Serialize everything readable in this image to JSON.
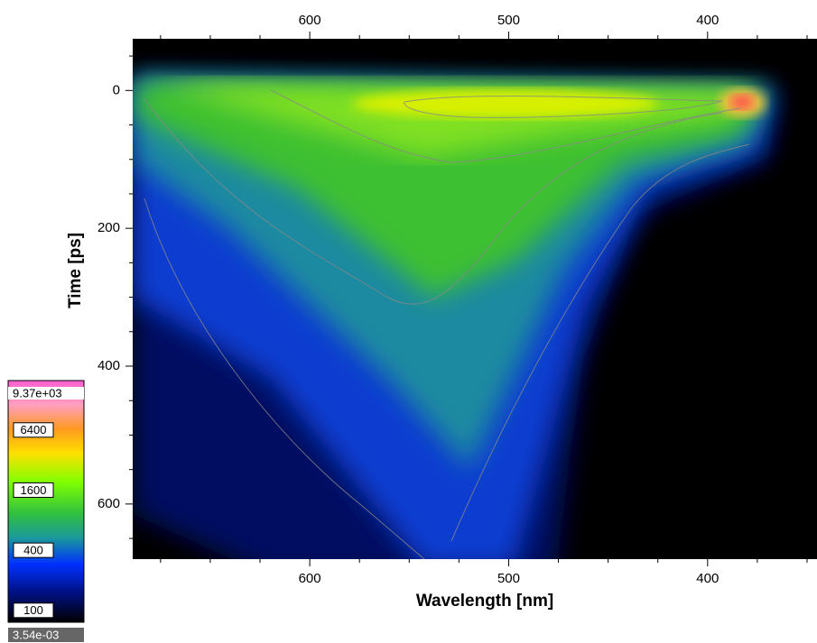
{
  "chart_data": {
    "type": "heatmap",
    "x_label": "Wavelength [nm]",
    "y_label": "Time [ps]",
    "xlim": [
      689,
      345
    ],
    "xticks": [
      600,
      500,
      400
    ],
    "xminorticks": [
      675,
      650,
      625,
      575,
      550,
      525,
      475,
      450,
      425,
      375,
      350
    ],
    "ylim": [
      -75,
      680
    ],
    "yticks": [
      0,
      200,
      400,
      600
    ],
    "yminorticks": [
      -50,
      50,
      100,
      150,
      250,
      300,
      350,
      450,
      500,
      550,
      650
    ],
    "colorbar": {
      "scale": "log",
      "lim": [
        76,
        20000
      ],
      "ticks": [
        100,
        400,
        1600,
        6400
      ],
      "max": {
        "value": 9370,
        "label": "9.37e+03"
      },
      "min": {
        "value": 0.00354,
        "label": "3.54e-03"
      }
    }
  }
}
